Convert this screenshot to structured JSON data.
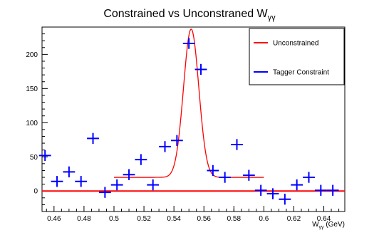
{
  "chart_data": {
    "type": "scatter",
    "title": "Constrained vs Unconstraned W",
    "title_subscript": "γγ",
    "xlabel": "W",
    "xlabel_subscript": "γγ",
    "xlabel_unit": " (GeV)",
    "ylabel": "",
    "xlim": [
      0.452,
      0.654
    ],
    "ylim": [
      -30,
      240
    ],
    "x_ticks": [
      0.46,
      0.48,
      0.5,
      0.52,
      0.54,
      0.56,
      0.58,
      0.6,
      0.62,
      0.64
    ],
    "x_tick_labels": [
      "0.46",
      "0.48",
      "0.5",
      "0.52",
      "0.54",
      "0.56",
      "0.58",
      "0.6",
      "0.62",
      "0.64"
    ],
    "y_ticks": [
      0,
      50,
      100,
      150,
      200
    ],
    "y_tick_labels": [
      "0",
      "50",
      "100",
      "150",
      "200"
    ],
    "bin_halfwidth": 0.004,
    "error_halfheight": 8,
    "legend_position": "top-right",
    "series": [
      {
        "name": "Unconstrained",
        "kind": "line",
        "color": "#ff0000",
        "fit": {
          "mean": 0.5515,
          "sigma": 0.0051,
          "amplitude": 217,
          "baseline": 20,
          "range": [
            0.5,
            0.6
          ]
        },
        "zero_line": true
      },
      {
        "name": "Tagger Constraint",
        "kind": "points",
        "color": "#0000ff",
        "x": [
          0.454,
          0.462,
          0.47,
          0.478,
          0.486,
          0.494,
          0.502,
          0.51,
          0.518,
          0.526,
          0.534,
          0.542,
          0.55,
          0.558,
          0.566,
          0.574,
          0.582,
          0.59,
          0.598,
          0.606,
          0.614,
          0.622,
          0.63,
          0.638,
          0.646
        ],
        "y": [
          52,
          14,
          28,
          14,
          77,
          -2,
          9,
          24,
          46,
          9,
          65,
          74,
          216,
          178,
          30,
          20,
          68,
          23,
          1,
          -4,
          -12,
          9,
          20,
          1,
          1
        ]
      }
    ]
  }
}
